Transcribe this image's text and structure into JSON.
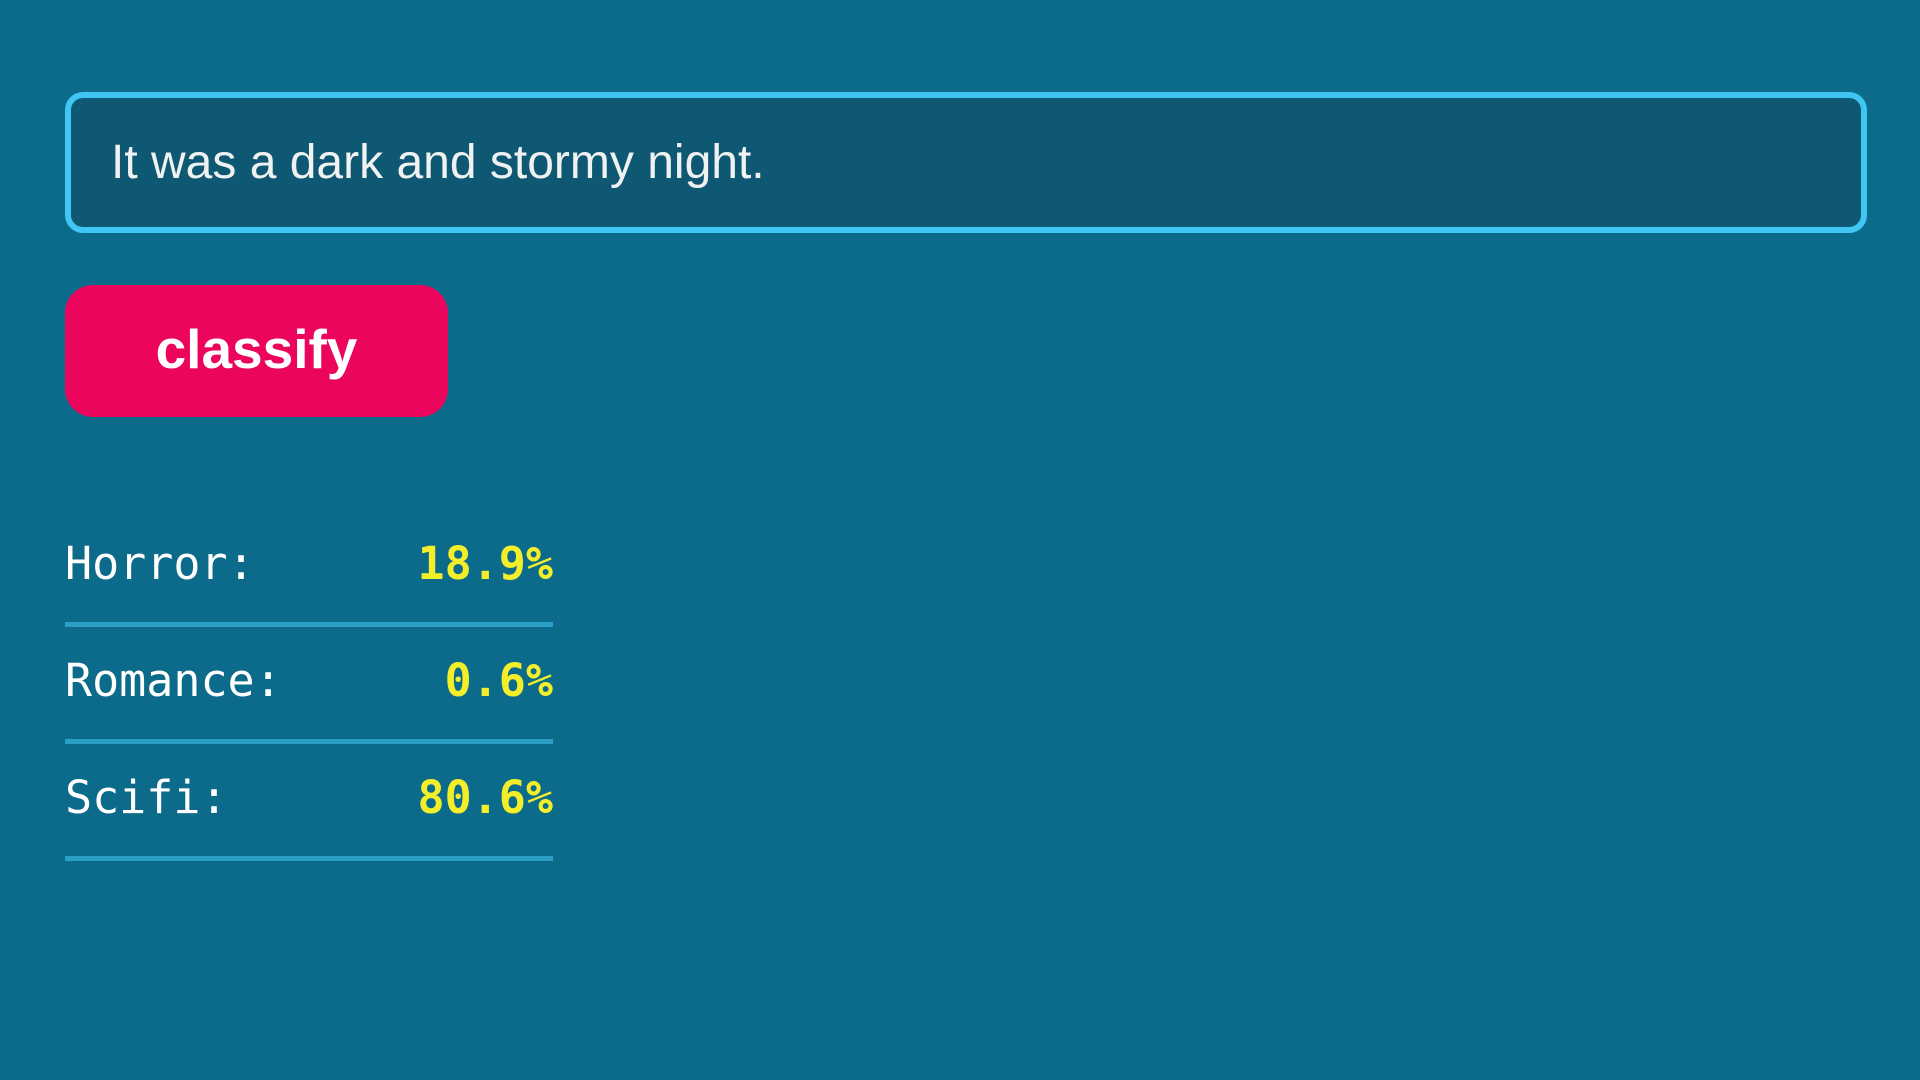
{
  "input": {
    "value": "It was a dark and stormy night."
  },
  "button": {
    "label": "classify"
  },
  "results": {
    "items": [
      {
        "label": "Horror:",
        "value": "18.9%"
      },
      {
        "label": "Romance:",
        "value": "0.6%"
      },
      {
        "label": "Scifi:",
        "value": "80.6%"
      }
    ]
  },
  "colors": {
    "background": "#0C6B8A",
    "input_background": "#0F5873",
    "input_border_cyan": "#40C6F2",
    "button_pink": "#EC055C",
    "value_yellow": "#F2EE2A",
    "separator_blue": "#2B9EC6",
    "text_white": "#FFFFFF"
  }
}
